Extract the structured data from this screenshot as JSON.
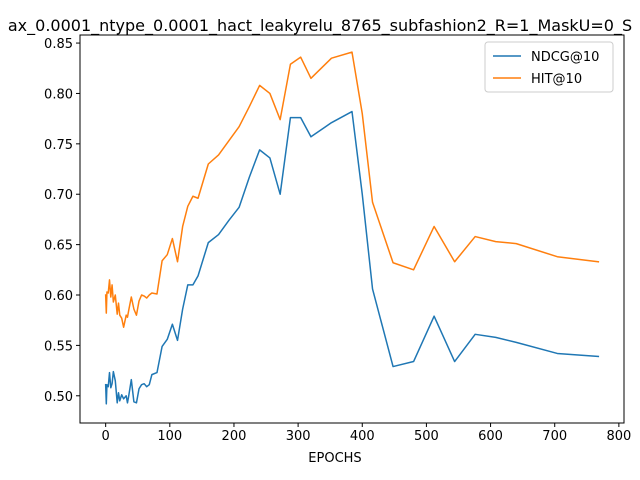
{
  "chart_data": {
    "type": "line",
    "title": "ax_0.0001_ntype_0.0001_hact_leakyrelu_8765_subfashion2_R=1_MaskU=0_S",
    "xlabel": "EPOCHS",
    "ylabel": "",
    "xlim": [
      -40,
      808
    ],
    "ylim": [
      0.473,
      0.858
    ],
    "xticks": [
      0,
      100,
      200,
      300,
      400,
      500,
      600,
      700,
      800
    ],
    "yticks": [
      0.5,
      0.55,
      0.6,
      0.65,
      0.7,
      0.75,
      0.8,
      0.85
    ],
    "legend_position": "top-right",
    "grid": false,
    "series": [
      {
        "name": "NDCG@10",
        "color": "#1f77b4",
        "points": [
          [
            0,
            0.511
          ],
          [
            1,
            0.492
          ],
          [
            2,
            0.511
          ],
          [
            4,
            0.509
          ],
          [
            6,
            0.523
          ],
          [
            8,
            0.508
          ],
          [
            10,
            0.512
          ],
          [
            12,
            0.524
          ],
          [
            15,
            0.515
          ],
          [
            18,
            0.493
          ],
          [
            20,
            0.503
          ],
          [
            22,
            0.495
          ],
          [
            25,
            0.501
          ],
          [
            28,
            0.497
          ],
          [
            32,
            0.5
          ],
          [
            34,
            0.493
          ],
          [
            36,
            0.5
          ],
          [
            40,
            0.516
          ],
          [
            44,
            0.494
          ],
          [
            48,
            0.493
          ],
          [
            52,
            0.507
          ],
          [
            56,
            0.511
          ],
          [
            60,
            0.512
          ],
          [
            64,
            0.509
          ],
          [
            68,
            0.511
          ],
          [
            72,
            0.521
          ],
          [
            80,
            0.523
          ],
          [
            88,
            0.549
          ],
          [
            96,
            0.556
          ],
          [
            104,
            0.571
          ],
          [
            112,
            0.555
          ],
          [
            120,
            0.586
          ],
          [
            128,
            0.61
          ],
          [
            136,
            0.61
          ],
          [
            144,
            0.619
          ],
          [
            160,
            0.652
          ],
          [
            176,
            0.66
          ],
          [
            192,
            0.674
          ],
          [
            208,
            0.687
          ],
          [
            224,
            0.717
          ],
          [
            240,
            0.744
          ],
          [
            256,
            0.736
          ],
          [
            272,
            0.7
          ],
          [
            288,
            0.776
          ],
          [
            304,
            0.776
          ],
          [
            320,
            0.757
          ],
          [
            352,
            0.771
          ],
          [
            384,
            0.782
          ],
          [
            400,
            0.7
          ],
          [
            416,
            0.606
          ],
          [
            448,
            0.529
          ],
          [
            480,
            0.534
          ],
          [
            512,
            0.579
          ],
          [
            544,
            0.534
          ],
          [
            576,
            0.561
          ],
          [
            608,
            0.558
          ],
          [
            640,
            0.553
          ],
          [
            704,
            0.542
          ],
          [
            768,
            0.539
          ]
        ]
      },
      {
        "name": "HIT@10",
        "color": "#ff7f0e",
        "points": [
          [
            0,
            0.6
          ],
          [
            1,
            0.582
          ],
          [
            2,
            0.603
          ],
          [
            4,
            0.602
          ],
          [
            6,
            0.615
          ],
          [
            8,
            0.598
          ],
          [
            10,
            0.61
          ],
          [
            12,
            0.593
          ],
          [
            15,
            0.6
          ],
          [
            18,
            0.581
          ],
          [
            20,
            0.592
          ],
          [
            22,
            0.58
          ],
          [
            25,
            0.577
          ],
          [
            28,
            0.568
          ],
          [
            32,
            0.58
          ],
          [
            34,
            0.578
          ],
          [
            36,
            0.585
          ],
          [
            40,
            0.598
          ],
          [
            44,
            0.586
          ],
          [
            48,
            0.58
          ],
          [
            52,
            0.594
          ],
          [
            56,
            0.6
          ],
          [
            60,
            0.599
          ],
          [
            64,
            0.597
          ],
          [
            68,
            0.6
          ],
          [
            72,
            0.602
          ],
          [
            80,
            0.601
          ],
          [
            88,
            0.634
          ],
          [
            96,
            0.64
          ],
          [
            104,
            0.656
          ],
          [
            112,
            0.633
          ],
          [
            120,
            0.668
          ],
          [
            128,
            0.688
          ],
          [
            136,
            0.698
          ],
          [
            144,
            0.696
          ],
          [
            160,
            0.73
          ],
          [
            176,
            0.739
          ],
          [
            192,
            0.753
          ],
          [
            208,
            0.767
          ],
          [
            224,
            0.787
          ],
          [
            240,
            0.808
          ],
          [
            256,
            0.8
          ],
          [
            272,
            0.774
          ],
          [
            288,
            0.829
          ],
          [
            304,
            0.836
          ],
          [
            320,
            0.815
          ],
          [
            352,
            0.835
          ],
          [
            384,
            0.841
          ],
          [
            400,
            0.78
          ],
          [
            416,
            0.692
          ],
          [
            448,
            0.632
          ],
          [
            480,
            0.625
          ],
          [
            512,
            0.668
          ],
          [
            544,
            0.633
          ],
          [
            576,
            0.658
          ],
          [
            608,
            0.653
          ],
          [
            640,
            0.651
          ],
          [
            704,
            0.638
          ],
          [
            768,
            0.633
          ]
        ]
      }
    ]
  }
}
